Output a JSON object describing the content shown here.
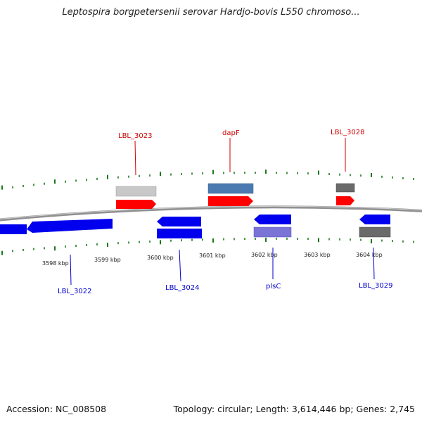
{
  "title": "Leptospira borgpetersenii serovar Hardjo-bovis L550 chromoso...",
  "footer": {
    "accession": "Accession: NC_008508",
    "summary": "Topology: circular; Length: 3,614,446 bp; Genes: 2,745"
  },
  "colors": {
    "forward_label": "#cc0000",
    "reverse_label": "#0000cc",
    "tick": "#1a7a1a",
    "backbone": "#888888",
    "cds_red": "#ff0000",
    "cds_blue": "#0000ee",
    "gene_gray": "#6a6a6a",
    "gene_lightgray": "#c8c8c8",
    "gene_steelblue": "#4a7ab0",
    "gene_slateblue": "#7a74d6"
  },
  "kbp_labels": [
    "3598 kbp",
    "3599 kbp",
    "3600 kbp",
    "3601 kbp",
    "3602 kbp",
    "3603 kbp",
    "3604 kbp"
  ],
  "gene_labels": {
    "forward": [
      "LBL_3023",
      "dapF",
      "LBL_3028"
    ],
    "reverse": [
      "LBL_3022",
      "LBL_3024",
      "plsC",
      "LBL_3029"
    ]
  }
}
